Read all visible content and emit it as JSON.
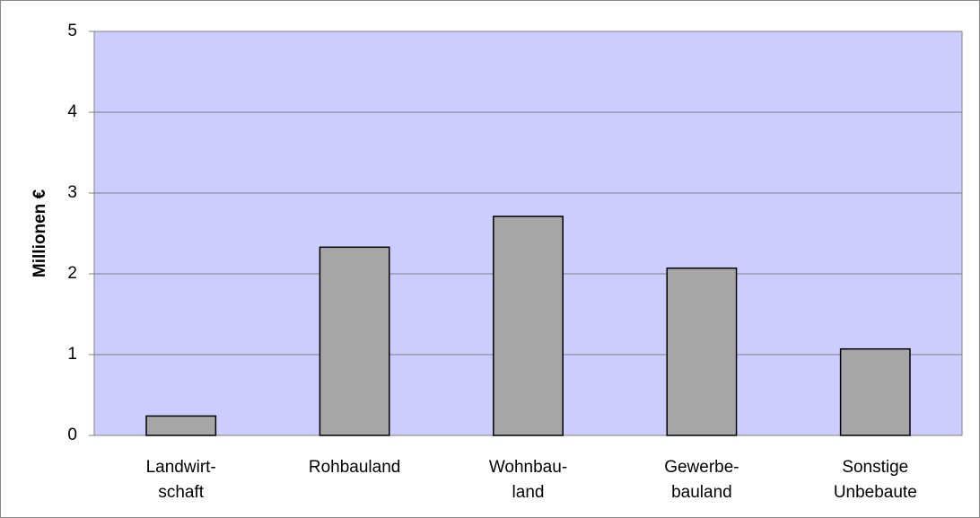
{
  "chart_data": {
    "type": "bar",
    "y_label": "Millionen €",
    "categories": [
      [
        "Landwirt-",
        "schaft"
      ],
      [
        "Rohbauland"
      ],
      [
        "Wohnbau-",
        "land"
      ],
      [
        "Gewerbe-",
        "bauland"
      ],
      [
        "Sonstige",
        "Unbebaute"
      ]
    ],
    "values": [
      0.24,
      2.33,
      2.71,
      2.07,
      1.07
    ],
    "color": "#a6a6a6",
    "ylim": [
      0,
      5
    ],
    "yticks": [
      0,
      1,
      2,
      3,
      4,
      5
    ],
    "grid": true
  }
}
